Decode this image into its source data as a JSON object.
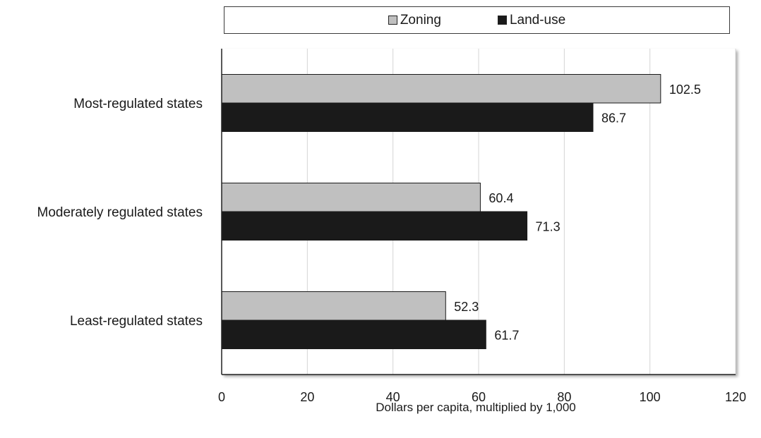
{
  "chart_data": {
    "type": "bar",
    "orientation": "horizontal",
    "categories": [
      "Most-regulated states",
      "Moderately regulated states",
      "Least-regulated states"
    ],
    "series": [
      {
        "name": "Zoning",
        "values": [
          102.5,
          60.4,
          52.3
        ],
        "color": "#c0c0c0"
      },
      {
        "name": "Land-use",
        "values": [
          86.7,
          71.3,
          61.7
        ],
        "color": "#1a1a1a"
      }
    ],
    "data_labels": [
      [
        "102.5",
        "60.4",
        "52.3"
      ],
      [
        "86.7",
        "71.3",
        "61.7"
      ]
    ],
    "xlabel": "Dollars per capita, multiplied by 1,000",
    "xlim": [
      0,
      120
    ],
    "xticks": [
      0,
      20,
      40,
      60,
      80,
      100,
      120
    ],
    "grid": "vertical",
    "legend": "top"
  }
}
